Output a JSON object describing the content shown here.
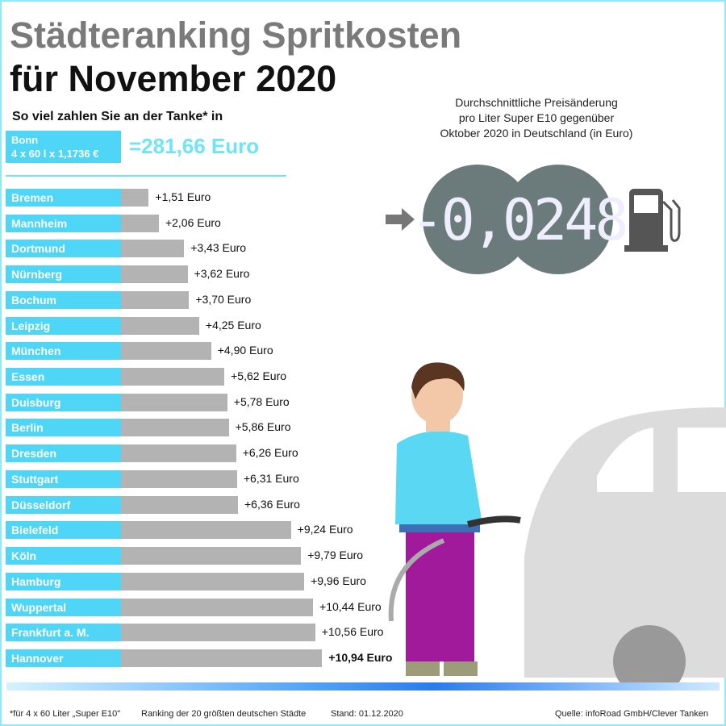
{
  "title_line1": "Städteranking Spritkosten",
  "title_line2": "für November 2020",
  "subtitle": "So viel zahlen Sie an der Tanke* in",
  "reference": {
    "city": "Bonn",
    "formula": "4 x 60 l x 1,1736 €",
    "total": "=281,66 Euro"
  },
  "info_text": [
    "Durchschnittliche Preisänderung",
    "pro Liter Super E10 gegenüber",
    "Oktober 2020 in Deutschland (in Euro)"
  ],
  "price_change": "-0,0248",
  "colors": {
    "label": "#4fd6f7",
    "bar": "#b3b3b3",
    "accent": "#6fe4f5",
    "display": "#6b7b7b"
  },
  "chart_data": {
    "type": "bar",
    "orientation": "horizontal",
    "categories": [
      "Bremen",
      "Mannheim",
      "Dortmund",
      "Nürnberg",
      "Bochum",
      "Leipzig",
      "München",
      "Essen",
      "Duisburg",
      "Berlin",
      "Dresden",
      "Stuttgart",
      "Düsseldorf",
      "Bielefeld",
      "Köln",
      "Hamburg",
      "Wuppertal",
      "Frankfurt a. M.",
      "Hannover"
    ],
    "values": [
      1.51,
      2.06,
      3.43,
      3.62,
      3.7,
      4.25,
      4.9,
      5.62,
      5.78,
      5.86,
      6.26,
      6.31,
      6.36,
      9.24,
      9.79,
      9.96,
      10.44,
      10.56,
      10.94
    ],
    "labels": [
      "+1,51 Euro",
      "+2,06 Euro",
      "+3,43 Euro",
      "+3,62 Euro",
      "+3,70 Euro",
      "+4,25 Euro",
      "+4,90 Euro",
      "+5,62 Euro",
      "+5,78 Euro",
      "+5,86 Euro",
      "+6,26 Euro",
      "+6,31 Euro",
      "+6,36 Euro",
      "+9,24 Euro",
      "+9,79 Euro",
      "+9,96 Euro",
      "+10,44 Euro",
      "+10,56 Euro",
      "+10,94 Euro"
    ],
    "unit": "Euro"
  },
  "footer": {
    "note": "*für 4 x 60 Liter „Super E10\"",
    "ranking": "Ranking der 20 größten deutschen Städte",
    "date": "Stand: 01.12.2020",
    "source": "Quelle: infoRoad GmbH/Clever Tanken"
  }
}
